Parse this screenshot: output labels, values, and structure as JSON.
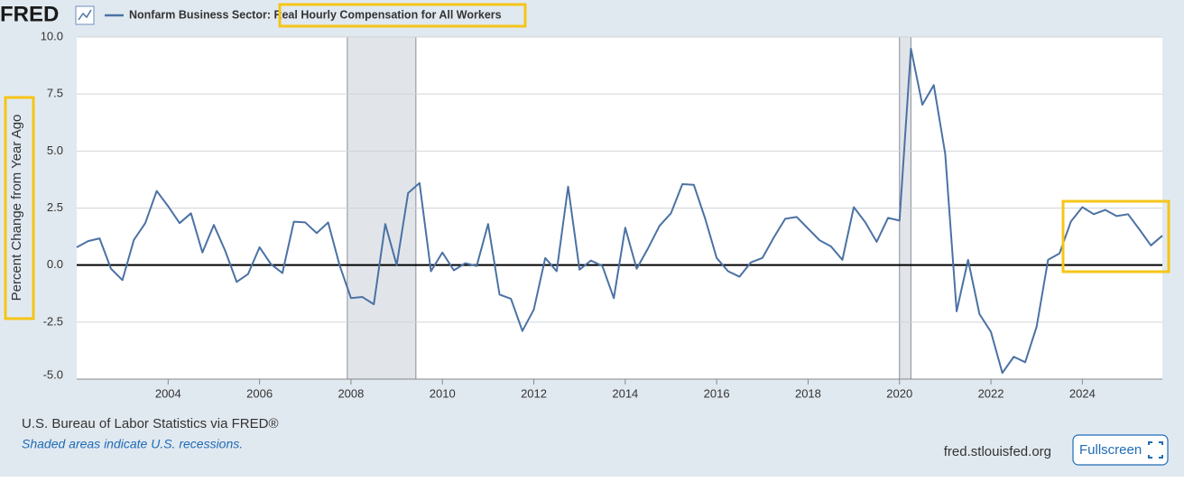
{
  "brand": "FRED",
  "chart_data": {
    "type": "line",
    "y_label": "Percent Change from Year Ago",
    "x": [
      2002,
      2002.25,
      2002.5,
      2002.75,
      2003,
      2003.25,
      2003.5,
      2003.75,
      2004,
      2004.25,
      2004.5,
      2004.75,
      2005,
      2005.25,
      2005.5,
      2005.75,
      2006,
      2006.25,
      2006.5,
      2006.75,
      2007,
      2007.25,
      2007.5,
      2007.75,
      2008,
      2008.25,
      2008.5,
      2008.75,
      2009,
      2009.25,
      2009.5,
      2009.75,
      2010,
      2010.25,
      2010.5,
      2010.75,
      2011,
      2011.25,
      2011.5,
      2011.75,
      2012,
      2012.25,
      2012.5,
      2012.75,
      2013,
      2013.25,
      2013.5,
      2013.75,
      2014,
      2014.25,
      2014.5,
      2014.75,
      2015,
      2015.25,
      2015.5,
      2015.75,
      2016,
      2016.25,
      2016.5,
      2016.75,
      2017,
      2017.25,
      2017.5,
      2017.75,
      2018,
      2018.25,
      2018.5,
      2018.75,
      2019,
      2019.25,
      2019.5,
      2019.75,
      2020,
      2020.25,
      2020.5,
      2020.75,
      2021,
      2021.25,
      2021.5,
      2021.75,
      2022,
      2022.25,
      2022.5,
      2022.75,
      2023,
      2023.25,
      2023.5,
      2023.75,
      2024,
      2024.25,
      2024.5,
      2024.75,
      2025,
      2025.25,
      2025.5,
      2025.75
    ],
    "series": [
      {
        "name": "Nonfarm Business Sector: Real Hourly Compensation for All Workers",
        "color": "#4b72a4",
        "values": [
          0.78,
          1.05,
          1.17,
          -0.16,
          -0.66,
          1.1,
          1.84,
          3.25,
          2.58,
          1.84,
          2.27,
          0.55,
          1.76,
          0.62,
          -0.74,
          -0.39,
          0.78,
          0.04,
          -0.35,
          1.9,
          1.87,
          1.4,
          1.87,
          0,
          -1.45,
          -1.4,
          -1.72,
          1.8,
          0,
          3.16,
          3.6,
          -0.27,
          0.55,
          -0.23,
          0.08,
          -0.04,
          1.8,
          -1.29,
          -1.48,
          -2.89,
          -1.95,
          0.31,
          -0.27,
          3.44,
          -0.2,
          0.2,
          -0.04,
          -1.45,
          1.64,
          -0.16,
          0.74,
          1.72,
          2.27,
          3.55,
          3.52,
          2.03,
          0.31,
          -0.27,
          -0.51,
          0.12,
          0.31,
          1.21,
          2.03,
          2.11,
          1.6,
          1.09,
          0.82,
          0.23,
          2.54,
          1.88,
          1.02,
          2.07,
          1.95,
          9.49,
          7.03,
          7.89,
          4.88,
          -2.03,
          0.23,
          -2.15,
          -2.93,
          -4.73,
          -4.02,
          -4.26,
          -2.7,
          0.23,
          0.51,
          1.91,
          2.54,
          2.23,
          2.42,
          2.15,
          2.23,
          1.56,
          0.86,
          1.29
        ]
      }
    ],
    "recessions": [
      [
        2007.92,
        2009.42
      ],
      [
        2020.0,
        2020.25
      ]
    ],
    "xlim": [
      2002,
      2025.75
    ],
    "xticks": [
      2004,
      2006,
      2008,
      2010,
      2012,
      2014,
      2016,
      2018,
      2020,
      2022,
      2024
    ],
    "ylim": [
      -5,
      10
    ],
    "yticks": [
      {
        "value": -5,
        "label": "-5.0"
      },
      {
        "value": -2.5,
        "label": "-2.5"
      },
      {
        "value": 0,
        "label": "0.0"
      },
      {
        "value": 2.5,
        "label": "2.5"
      },
      {
        "value": 5,
        "label": "5.0"
      },
      {
        "value": 7.5,
        "label": "7.5"
      },
      {
        "value": 10,
        "label": "10.0"
      }
    ],
    "grid": true
  },
  "footer": {
    "source": "U.S. Bureau of Labor Statistics via FRED®",
    "note": "Shaded areas indicate U.S. recessions.",
    "site": "fred.stlouisfed.org",
    "button": "Fullscreen"
  }
}
